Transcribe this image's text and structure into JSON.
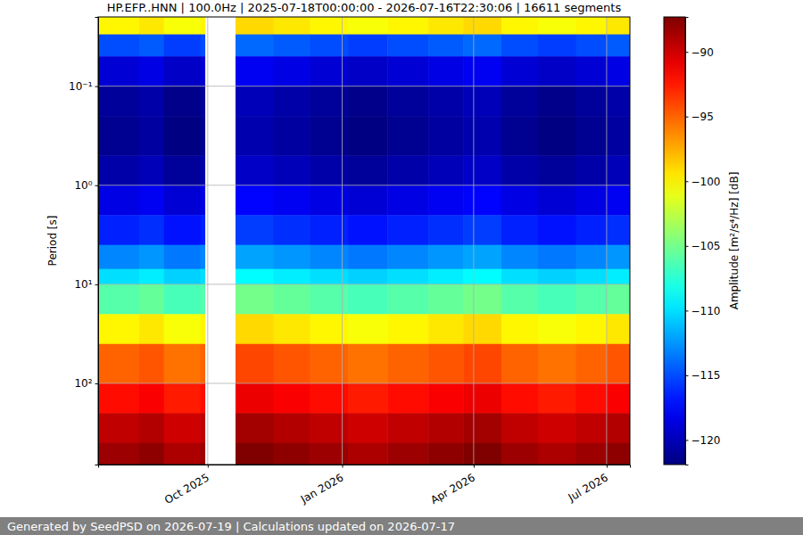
{
  "chart_data": {
    "type": "heatmap",
    "title": "HP.EFP..HNN | 100.0Hz | 2025-07-18T00:00:00 - 2026-07-16T22:30:06 | 16611 segments",
    "y_label": "Period [s]",
    "log": "y",
    "grid": true,
    "xlim": [
      "2025-07-18T00:00:00",
      "2026-07-16T22:30:06"
    ],
    "xticks": [
      {
        "value": "2025-10-01",
        "label": "Oct 2025"
      },
      {
        "value": "2026-01-01",
        "label": "Jan 2026"
      },
      {
        "value": "2026-04-01",
        "label": "Apr 2026"
      },
      {
        "value": "2026-07-01",
        "label": "Jul 2026"
      }
    ],
    "ylim": [
      0.02,
      660
    ],
    "yticks": [
      {
        "value": 0.1,
        "label": "10⁻¹"
      },
      {
        "value": 1,
        "label": "10⁰"
      },
      {
        "value": 10,
        "label": "10¹"
      },
      {
        "value": 100,
        "label": "10²"
      }
    ],
    "x_edges": [
      "2025-07-18T00:00:00",
      "2025-08-15",
      "2025-09-01",
      "2025-09-26",
      "2025-09-29",
      "2025-10-20",
      "2025-11-15",
      "2025-12-10",
      "2026-01-05",
      "2026-02-01",
      "2026-03-01",
      "2026-03-25",
      "2026-04-20",
      "2026-05-15",
      "2026-06-10",
      "2026-07-01",
      "2026-07-16T22:30:06"
    ],
    "y_edges": [
      0.02,
      0.03,
      0.05,
      0.1,
      0.2,
      0.5,
      1,
      2,
      4,
      7,
      10,
      20,
      40,
      100,
      200,
      400,
      660
    ],
    "values": [
      [
        -100,
        -99.5,
        -100.5,
        -100,
        null,
        -99,
        -99.5,
        -100,
        -100.5,
        -100,
        -99.5,
        -99,
        -100,
        -100.5,
        -100,
        -99.5
      ],
      [
        -115,
        -114.5,
        -115.5,
        -115,
        null,
        -114,
        -114.5,
        -115,
        -115.5,
        -115,
        -114.5,
        -114,
        -115,
        -115.5,
        -115,
        -114.5
      ],
      [
        -119,
        -118.5,
        -119.5,
        -119,
        null,
        -118,
        -118.5,
        -119,
        -119.5,
        -119,
        -118.5,
        -118,
        -119,
        -119.5,
        -119,
        -118.5
      ],
      [
        -121,
        -120.5,
        -121.5,
        -121,
        null,
        -120,
        -120.5,
        -121,
        -121.5,
        -121,
        -120.5,
        -120,
        -121,
        -121.5,
        -121,
        -120.5
      ],
      [
        -121.3,
        -120.8,
        -121.8,
        -121.3,
        null,
        -120.3,
        -120.8,
        -121.3,
        -121.8,
        -121.3,
        -120.8,
        -120.3,
        -121.3,
        -121.8,
        -121.3,
        -120.8
      ],
      [
        -120.5,
        -120,
        -121,
        -120.5,
        null,
        -119.5,
        -120,
        -120.5,
        -121,
        -120.5,
        -120,
        -119.5,
        -120.5,
        -121,
        -120.5,
        -120
      ],
      [
        -118.5,
        -118,
        -119,
        -118.5,
        null,
        -117.5,
        -118,
        -118.5,
        -119,
        -118.5,
        -118,
        -117.5,
        -118.5,
        -119,
        -118.5,
        -118
      ],
      [
        -116.5,
        -116,
        -117,
        -116.5,
        null,
        -115.5,
        -116,
        -116.5,
        -117,
        -116.5,
        -116,
        -115.5,
        -116.5,
        -117,
        -116.5,
        -116
      ],
      [
        -113,
        -112.5,
        -113.5,
        -113,
        null,
        -112,
        -112.5,
        -113,
        -113.5,
        -113,
        -112.5,
        -112,
        -113,
        -113.5,
        -113,
        -112.5
      ],
      [
        -110,
        -109.5,
        -110.5,
        -110,
        null,
        -109,
        -109.5,
        -110,
        -110.5,
        -110,
        -109.5,
        -109,
        -110,
        -110.5,
        -110,
        -109.5
      ],
      [
        -106,
        -105.5,
        -106.5,
        -106,
        null,
        -105,
        -105.5,
        -106,
        -106.5,
        -106,
        -105.5,
        -105,
        -106,
        -106.5,
        -106,
        -105.5
      ],
      [
        -100,
        -99.5,
        -100.5,
        -100,
        null,
        -99,
        -99.5,
        -100,
        -100.5,
        -100,
        -99.5,
        -99,
        -100,
        -100.5,
        -100,
        -99.5
      ],
      [
        -95,
        -94.5,
        -95.5,
        -95,
        null,
        -94,
        -94.5,
        -95,
        -95.5,
        -95,
        -94.5,
        -94,
        -95,
        -95.5,
        -95,
        -94.5
      ],
      [
        -92,
        -91.5,
        -92.5,
        -92,
        null,
        -91,
        -91.5,
        -92,
        -92.5,
        -92,
        -91.5,
        -91,
        -92,
        -92.5,
        -92,
        -91.5
      ],
      [
        -89.5,
        -89,
        -90,
        -89.5,
        null,
        -88.5,
        -89,
        -89.5,
        -90,
        -89.5,
        -89,
        -88.5,
        -89.5,
        -90,
        -89.5,
        -89
      ],
      [
        -88.3,
        -87.8,
        -88.8,
        -88.3,
        null,
        -87.3,
        -87.8,
        -88.3,
        -88.8,
        -88.3,
        -87.8,
        -87.3,
        -88.3,
        -88.8,
        -88.3,
        -87.8
      ]
    ],
    "color_range": [
      -121.9,
      -87.3
    ],
    "color_ticks": [
      {
        "value": -90,
        "label": "−90"
      },
      {
        "value": -95,
        "label": "−95"
      },
      {
        "value": -100,
        "label": "−100"
      },
      {
        "value": -105,
        "label": "−105"
      },
      {
        "value": -110,
        "label": "−110"
      },
      {
        "value": -115,
        "label": "−115"
      },
      {
        "value": -120,
        "label": "−120"
      }
    ],
    "color_label": "Amplitude [m²/s⁴/Hz] [dB]"
  },
  "footer": "Generated by SeedPSD on 2026-07-19 | Calculations updated on 2026-07-17"
}
